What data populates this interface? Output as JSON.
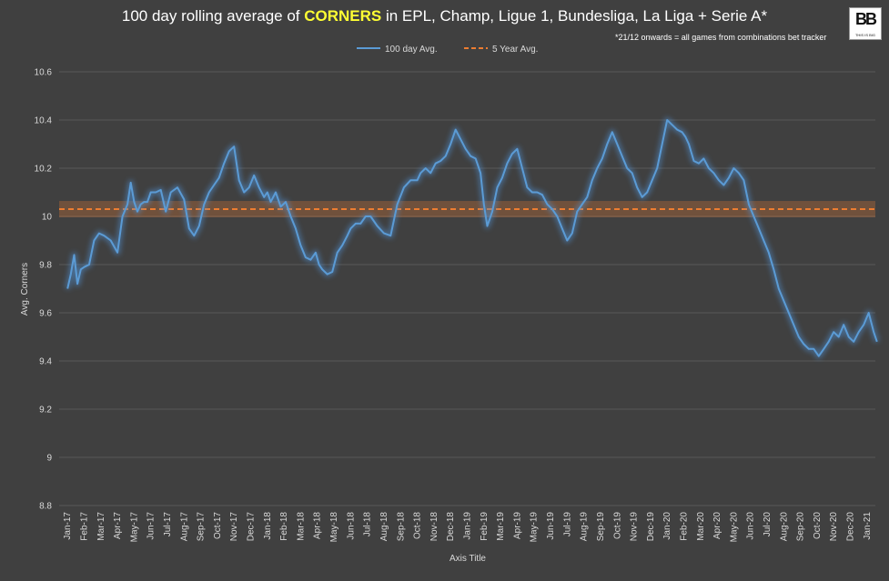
{
  "title": {
    "prefix": "100 day rolling average of ",
    "highlight": "CORNERS",
    "suffix": " in EPL, Champ, Ligue 1, Bundesliga, La Liga + Serie A*"
  },
  "note": "*21/12 onwards = all games from combinations bet tracker",
  "logo": {
    "letters": "BB",
    "tagline": "THIS IS BIG"
  },
  "colors": {
    "background": "#404040",
    "line": "#5b9bd5",
    "glow": "#4f8fd0",
    "avg": "#ed7d31",
    "grid": "#595959",
    "title_highlight": "#ffff33"
  },
  "chart_data": {
    "type": "line",
    "title": "100 day rolling average of CORNERS in EPL, Champ, Ligue 1, Bundesliga, La Liga + Serie A*",
    "xlabel": "Axis Title",
    "ylabel": "Avg. Corners",
    "ylim": [
      8.8,
      10.6
    ],
    "yticks": [
      8.8,
      9,
      9.2,
      9.4,
      9.6,
      9.8,
      10,
      10.2,
      10.4,
      10.6
    ],
    "ytick_labels": [
      "8.8",
      "9",
      "9.2",
      "9.4",
      "9.6",
      "9.8",
      "10",
      "10.2",
      "10.4",
      "10.6"
    ],
    "categories": [
      "Jan-17",
      "Feb-17",
      "Mar-17",
      "Apr-17",
      "May-17",
      "Jun-17",
      "Jul-17",
      "Aug-17",
      "Sep-17",
      "Oct-17",
      "Nov-17",
      "Dec-17",
      "Jan-18",
      "Feb-18",
      "Mar-18",
      "Apr-18",
      "May-18",
      "Jun-18",
      "Jul-18",
      "Aug-18",
      "Sep-18",
      "Oct-18",
      "Nov-18",
      "Dec-18",
      "Jan-19",
      "Feb-19",
      "Mar-19",
      "Apr-19",
      "May-19",
      "Jun-19",
      "Jul-19",
      "Aug-19",
      "Sep-19",
      "Oct-19",
      "Nov-19",
      "Dec-19",
      "Jan-20",
      "Feb-20",
      "Mar-20",
      "Apr-20",
      "May-20",
      "Jun-20",
      "Jul-20",
      "Aug-20",
      "Sep-20",
      "Oct-20",
      "Nov-20",
      "Dec-20",
      "Jan-21"
    ],
    "legend": [
      "100 day Avg.",
      "5 Year Avg."
    ],
    "legend_position": "top",
    "series": [
      {
        "name": "100 day Avg.",
        "x": [
          0,
          0.2,
          0.4,
          0.6,
          0.8,
          1.0,
          1.3,
          1.6,
          1.9,
          2.2,
          2.6,
          3.0,
          3.3,
          3.6,
          3.8,
          4.0,
          4.2,
          4.4,
          4.6,
          4.8,
          5.0,
          5.3,
          5.6,
          5.9,
          6.2,
          6.6,
          7.0,
          7.3,
          7.6,
          7.9,
          8.2,
          8.5,
          8.8,
          9.1,
          9.4,
          9.7,
          10.0,
          10.3,
          10.6,
          10.9,
          11.2,
          11.5,
          11.8,
          12.0,
          12.2,
          12.5,
          12.8,
          13.1,
          13.4,
          13.7,
          14.0,
          14.3,
          14.6,
          14.9,
          15.1,
          15.3,
          15.6,
          15.9,
          16.2,
          16.5,
          16.8,
          17.0,
          17.3,
          17.6,
          17.9,
          18.2,
          18.6,
          19.0,
          19.4,
          19.8,
          20.2,
          20.6,
          21.0,
          21.2,
          21.5,
          21.8,
          22.1,
          22.4,
          22.7,
          23.0,
          23.3,
          23.6,
          23.9,
          24.2,
          24.5,
          24.8,
          25.0,
          25.2,
          25.5,
          25.8,
          26.1,
          26.4,
          26.7,
          27.0,
          27.3,
          27.6,
          27.9,
          28.2,
          28.5,
          28.8,
          29.1,
          29.4,
          29.7,
          30.0,
          30.3,
          30.6,
          30.9,
          31.2,
          31.5,
          31.8,
          32.1,
          32.4,
          32.7,
          33.0,
          33.3,
          33.6,
          33.9,
          34.2,
          34.5,
          34.8,
          35.1,
          35.4,
          35.7,
          36.0,
          36.3,
          36.6,
          36.9,
          37.1,
          37.3,
          37.6,
          37.9,
          38.2,
          38.5,
          38.8,
          39.1,
          39.4,
          39.7,
          40.0,
          40.3,
          40.6,
          40.9,
          41.2,
          41.5,
          41.8,
          42.1,
          42.4,
          42.7,
          43.0,
          43.3,
          43.6,
          43.9,
          44.2,
          44.5,
          44.8,
          45.1,
          45.4,
          45.7,
          46.0,
          46.3,
          46.6,
          46.9,
          47.2,
          47.5,
          47.8,
          48.1,
          48.4,
          48.6
        ],
        "values": [
          9.7,
          9.76,
          9.84,
          9.72,
          9.78,
          9.79,
          9.8,
          9.9,
          9.93,
          9.92,
          9.9,
          9.85,
          10.0,
          10.05,
          10.14,
          10.06,
          10.02,
          10.05,
          10.06,
          10.06,
          10.1,
          10.1,
          10.11,
          10.02,
          10.1,
          10.12,
          10.07,
          9.95,
          9.92,
          9.96,
          10.05,
          10.1,
          10.13,
          10.16,
          10.22,
          10.27,
          10.29,
          10.15,
          10.1,
          10.12,
          10.17,
          10.12,
          10.08,
          10.1,
          10.06,
          10.1,
          10.04,
          10.06,
          10.0,
          9.95,
          9.88,
          9.83,
          9.82,
          9.85,
          9.8,
          9.78,
          9.76,
          9.77,
          9.85,
          9.88,
          9.92,
          9.95,
          9.97,
          9.97,
          10.0,
          10.0,
          9.96,
          9.93,
          9.92,
          10.05,
          10.12,
          10.15,
          10.15,
          10.18,
          10.2,
          10.18,
          10.22,
          10.23,
          10.25,
          10.3,
          10.36,
          10.32,
          10.28,
          10.25,
          10.24,
          10.18,
          10.05,
          9.96,
          10.02,
          10.12,
          10.16,
          10.22,
          10.26,
          10.28,
          10.2,
          10.12,
          10.1,
          10.1,
          10.09,
          10.05,
          10.03,
          10.0,
          9.95,
          9.9,
          9.93,
          10.02,
          10.05,
          10.08,
          10.15,
          10.2,
          10.24,
          10.3,
          10.35,
          10.3,
          10.25,
          10.2,
          10.18,
          10.12,
          10.08,
          10.1,
          10.15,
          10.2,
          10.3,
          10.4,
          10.38,
          10.36,
          10.35,
          10.33,
          10.3,
          10.23,
          10.22,
          10.24,
          10.2,
          10.18,
          10.15,
          10.13,
          10.16,
          10.2,
          10.18,
          10.15,
          10.05,
          10.0,
          9.95,
          9.9,
          9.85,
          9.78,
          9.7,
          9.65,
          9.6,
          9.55,
          9.5,
          9.47,
          9.45,
          9.45,
          9.42,
          9.45,
          9.48,
          9.52,
          9.5,
          9.55,
          9.5,
          9.48,
          9.52,
          9.55,
          9.6,
          9.52,
          9.48
        ]
      },
      {
        "name": "5 Year Avg.",
        "value": 10.03
      }
    ]
  }
}
